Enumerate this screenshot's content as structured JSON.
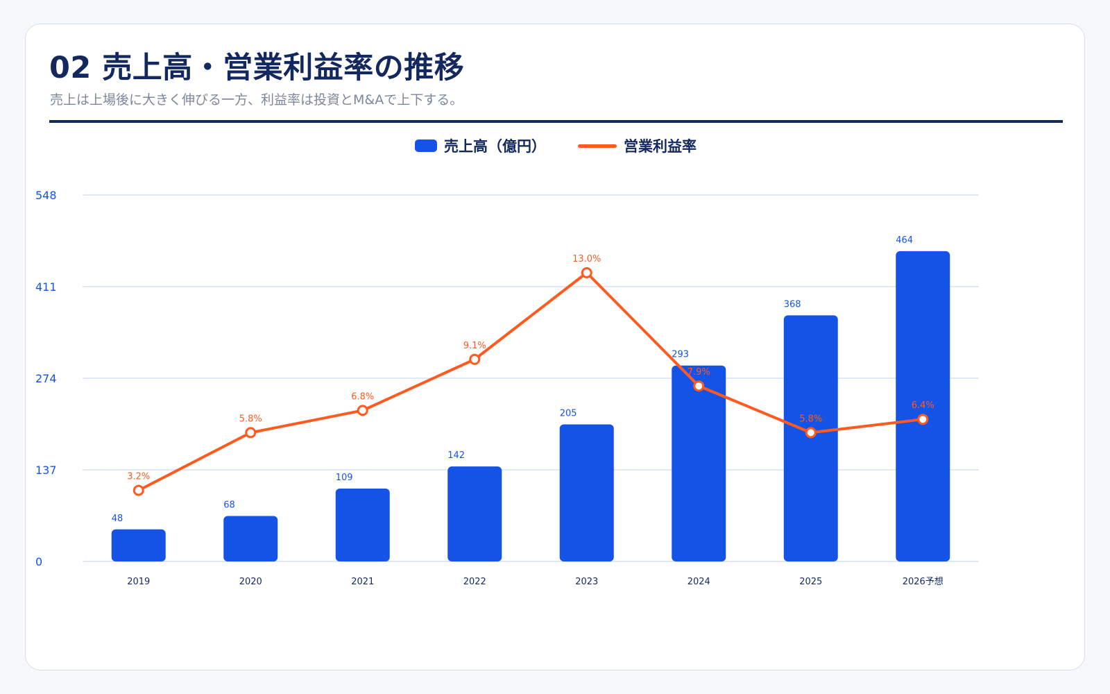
{
  "header": {
    "title": "02 売上高・営業利益率の推移",
    "subtitle": "売上は上場後に大きく伸びる一方、利益率は投資とM&Aで上下する。"
  },
  "legend": {
    "bar_label": "売上高（億円）",
    "line_label": "営業利益率"
  },
  "colors": {
    "bar": "#1553e6",
    "line": "#ff5a1f",
    "axis_text": "#1553e6",
    "category_text": "#13285e",
    "grid": "#d5e0f0"
  },
  "chart_data": {
    "type": "bar",
    "title": "02 売上高・営業利益率の推移",
    "subtitle": "売上は上場後に大きく伸びる一方、利益率は投資とM&Aで上下する。",
    "xlabel": "",
    "ylabel": "",
    "categories": [
      "2019",
      "2020",
      "2021",
      "2022",
      "2023",
      "2024",
      "2025",
      "2026予想"
    ],
    "ylim": [
      0,
      548
    ],
    "yticks": [
      0,
      137,
      274,
      411,
      548
    ],
    "grid": true,
    "legend_position": "top-center",
    "series": [
      {
        "name": "売上高（億円）",
        "type": "bar",
        "values": [
          48,
          68,
          109,
          142,
          205,
          293,
          368,
          464
        ],
        "labels": [
          "48",
          "68",
          "109",
          "142",
          "205",
          "293",
          "368",
          "464"
        ]
      },
      {
        "name": "営業利益率",
        "type": "line",
        "values": [
          3.2,
          5.8,
          6.8,
          9.1,
          13.0,
          7.9,
          5.8,
          6.4
        ],
        "labels": [
          "3.2%",
          "5.8%",
          "6.8%",
          "9.1%",
          "13.0%",
          "7.9%",
          "5.8%",
          "6.4%"
        ],
        "ylim": [
          0,
          16.5
        ]
      }
    ]
  }
}
